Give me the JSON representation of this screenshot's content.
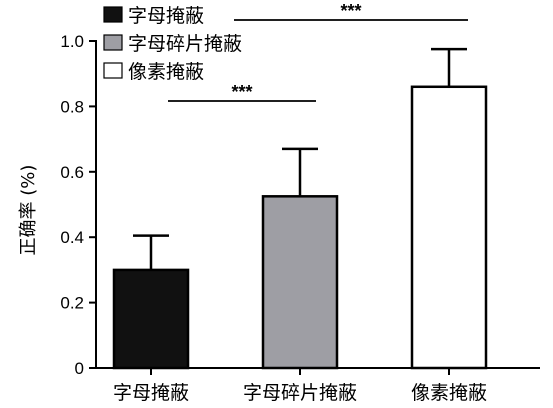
{
  "chart_data": {
    "type": "bar",
    "categories": [
      "字母掩蔽",
      "字母碎片掩蔽",
      "像素掩蔽"
    ],
    "series": [
      {
        "values": [
          0.3,
          0.525,
          0.86
        ],
        "errors": [
          0.105,
          0.145,
          0.115
        ],
        "colors": [
          "#111111",
          "#9e9ea4",
          "#ffffff"
        ]
      }
    ],
    "legend": [
      {
        "label": "字母掩蔽",
        "color": "#111111"
      },
      {
        "label": "字母碎片掩蔽",
        "color": "#9e9ea4"
      },
      {
        "label": "像素掩蔽",
        "color": "#ffffff"
      }
    ],
    "legend_position": "top-left",
    "ylabel": "正确率 (%)",
    "xlabel": "",
    "ylim": [
      0,
      1.0
    ],
    "yticks": [
      0,
      0.2,
      0.4,
      0.6,
      0.8,
      1.0
    ],
    "ytick_labels": [
      "0",
      "0.2",
      "0.4",
      "0.6",
      "0.8",
      "1.0"
    ],
    "grid": false,
    "significance": [
      {
        "from": 0,
        "to": 1,
        "label": "***"
      },
      {
        "from": 0,
        "to": 2,
        "label": "***"
      }
    ]
  }
}
